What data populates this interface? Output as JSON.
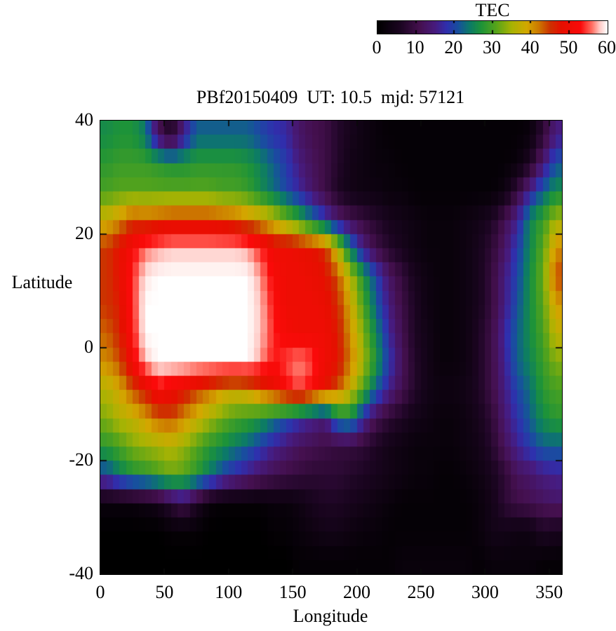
{
  "title": "PBf20150409  UT: 10.5  mjd: 57121",
  "colorbar": {
    "title": "TEC",
    "tick_labels": [
      "0",
      "10",
      "20",
      "30",
      "40",
      "50",
      "60"
    ],
    "tick_values": [
      0,
      10,
      20,
      30,
      40,
      50,
      60
    ],
    "inner_ticks": [
      10,
      20,
      30,
      40,
      50
    ],
    "min": 0,
    "max": 60
  },
  "axes": {
    "xlabel": "Longitude",
    "ylabel": "Latitude",
    "x_ticks": [
      0,
      50,
      100,
      150,
      200,
      250,
      300,
      350
    ],
    "y_ticks": [
      40,
      20,
      0,
      -20,
      -40
    ],
    "xlim": [
      0,
      360
    ],
    "ylim": [
      -40,
      40
    ]
  },
  "chart_data": {
    "type": "heatmap",
    "title": "PBf20150409  UT: 10.5  mjd: 57121",
    "xlabel": "Longitude",
    "ylabel": "Latitude",
    "colorbar_title": "TEC",
    "zlim": [
      0,
      60
    ],
    "xlim": [
      0,
      360
    ],
    "ylim": [
      -40,
      40
    ],
    "x_centers": [
      5,
      15,
      25,
      35,
      45,
      55,
      65,
      75,
      85,
      95,
      105,
      115,
      125,
      135,
      145,
      155,
      165,
      175,
      185,
      195,
      205,
      215,
      225,
      235,
      245,
      255,
      265,
      275,
      285,
      295,
      305,
      315,
      325,
      335,
      345,
      355
    ],
    "y_centers": [
      37.5,
      32.5,
      27.5,
      22.5,
      17.5,
      12.5,
      7.5,
      2.5,
      -2.5,
      -7.5,
      -12.5,
      -17.5,
      -22.5,
      -27.5,
      -32.5,
      -37.5
    ],
    "palette_stops": [
      [
        0,
        "#000000"
      ],
      [
        6,
        "#1c0522"
      ],
      [
        11,
        "#45104f"
      ],
      [
        15,
        "#471b7e"
      ],
      [
        18,
        "#2f2fae"
      ],
      [
        21,
        "#17509e"
      ],
      [
        24,
        "#0c7a68"
      ],
      [
        27,
        "#1d9339"
      ],
      [
        31,
        "#57a41a"
      ],
      [
        35,
        "#a8b303"
      ],
      [
        39,
        "#d3a800"
      ],
      [
        42,
        "#cc7a00"
      ],
      [
        45,
        "#cc3300"
      ],
      [
        48,
        "#e60f00"
      ],
      [
        53,
        "#fb0a0a"
      ],
      [
        56,
        "#ff6e62"
      ],
      [
        58,
        "#ffc9c4"
      ],
      [
        60,
        "#ffffff"
      ]
    ],
    "values": [
      [
        26,
        27,
        27,
        24,
        12,
        6,
        15,
        22,
        22,
        22,
        22,
        22,
        20,
        18,
        17,
        13,
        11,
        10,
        7,
        5,
        3,
        2,
        1,
        1,
        1,
        1,
        1,
        1,
        1,
        1,
        1,
        1,
        1,
        2,
        8,
        15
      ],
      [
        28,
        29,
        29,
        29,
        28,
        27,
        27,
        28,
        28,
        28,
        28,
        27,
        25,
        22,
        19,
        15,
        12,
        10,
        7,
        4,
        3,
        2,
        2,
        1,
        1,
        1,
        1,
        1,
        1,
        1,
        1,
        1,
        2,
        6,
        14,
        21
      ],
      [
        30,
        31,
        31,
        31,
        31,
        31,
        31,
        31,
        31,
        30,
        30,
        29,
        26,
        23,
        20,
        17,
        13,
        10,
        6,
        4,
        3,
        3,
        2,
        2,
        1,
        1,
        1,
        1,
        1,
        1,
        1,
        3,
        9,
        16,
        22,
        26
      ],
      [
        38,
        41,
        45,
        44,
        45,
        46,
        46,
        46,
        46,
        45,
        44,
        42,
        40,
        37,
        33,
        29,
        24,
        19,
        14,
        11,
        9,
        7,
        5,
        4,
        3,
        2,
        2,
        2,
        3,
        4,
        6,
        11,
        16,
        25,
        29,
        35
      ],
      [
        45,
        48,
        52,
        56,
        57,
        58,
        58,
        58,
        58,
        58,
        58,
        57,
        54,
        50,
        50,
        49,
        48,
        46,
        36,
        24,
        15,
        10,
        7,
        5,
        3,
        2,
        2,
        2,
        3,
        5,
        8,
        13,
        19,
        25,
        31,
        41
      ],
      [
        45,
        48,
        54,
        59,
        60,
        60,
        60,
        60,
        60,
        60,
        60,
        60,
        57,
        52,
        50,
        50,
        49,
        48,
        44,
        36,
        27,
        20,
        13,
        9,
        5,
        3,
        2,
        2,
        3,
        5,
        9,
        15,
        20,
        26,
        32,
        44
      ],
      [
        45,
        47,
        54,
        60,
        60,
        60,
        60,
        60,
        60,
        60,
        60,
        60,
        58,
        53,
        50,
        50,
        50,
        49,
        46,
        39,
        30,
        22,
        15,
        10,
        6,
        3,
        2,
        2,
        3,
        5,
        9,
        15,
        21,
        26,
        31,
        40
      ],
      [
        43,
        46,
        53,
        60,
        60,
        60,
        60,
        60,
        60,
        60,
        60,
        60,
        58,
        54,
        51,
        50,
        50,
        50,
        47,
        41,
        33,
        25,
        17,
        11,
        6,
        4,
        2,
        2,
        3,
        6,
        10,
        17,
        22,
        26,
        30,
        37
      ],
      [
        41,
        44,
        51,
        58,
        60,
        60,
        60,
        60,
        60,
        60,
        60,
        60,
        57,
        53,
        55,
        57,
        55,
        50,
        48,
        42,
        35,
        27,
        19,
        12,
        7,
        4,
        2,
        2,
        3,
        6,
        10,
        16,
        22,
        25,
        29,
        33
      ],
      [
        36,
        39,
        44,
        47,
        52,
        50,
        48,
        45,
        43,
        40,
        39,
        40,
        44,
        48,
        52,
        55,
        52,
        48,
        44,
        38,
        30,
        22,
        16,
        11,
        7,
        4,
        3,
        3,
        4,
        6,
        10,
        15,
        20,
        23,
        28,
        30
      ],
      [
        33,
        36,
        37,
        40,
        43,
        44,
        41,
        38,
        35,
        32,
        30,
        29,
        27,
        24,
        21,
        18,
        16,
        14,
        24,
        26,
        17,
        11,
        8,
        6,
        4,
        3,
        2,
        2,
        3,
        5,
        8,
        14,
        18,
        22,
        26,
        28
      ],
      [
        28,
        30,
        33,
        34,
        35,
        36,
        34,
        31,
        28,
        26,
        24,
        22,
        19,
        16,
        14,
        12,
        11,
        10,
        9,
        9,
        8,
        6,
        4,
        3,
        2,
        2,
        2,
        2,
        3,
        4,
        7,
        12,
        16,
        19,
        22,
        22
      ],
      [
        20,
        24,
        27,
        28,
        30,
        32,
        31,
        28,
        24,
        20,
        17,
        15,
        13,
        11,
        10,
        9,
        8,
        8,
        8,
        7,
        6,
        5,
        4,
        3,
        2,
        2,
        1,
        1,
        2,
        3,
        5,
        8,
        12,
        13,
        15,
        16
      ],
      [
        2,
        2,
        2,
        3,
        4,
        8,
        11,
        6,
        2,
        1,
        1,
        1,
        1,
        2,
        2,
        3,
        5,
        6,
        6,
        5,
        4,
        3,
        2,
        1,
        1,
        1,
        1,
        1,
        1,
        2,
        4,
        8,
        10,
        11,
        12,
        13
      ],
      [
        0,
        0,
        0,
        0,
        0,
        1,
        1,
        1,
        0,
        0,
        0,
        0,
        0,
        1,
        1,
        2,
        3,
        4,
        4,
        3,
        2,
        2,
        1,
        1,
        1,
        1,
        1,
        1,
        1,
        2,
        4,
        4,
        3,
        3,
        6,
        5
      ],
      [
        0,
        0,
        0,
        0,
        0,
        0,
        0,
        0,
        0,
        0,
        0,
        0,
        0,
        0,
        0,
        1,
        1,
        1,
        1,
        1,
        1,
        1,
        1,
        2,
        2,
        2,
        2,
        2,
        2,
        1,
        2,
        2,
        2,
        2,
        1,
        1
      ]
    ]
  }
}
